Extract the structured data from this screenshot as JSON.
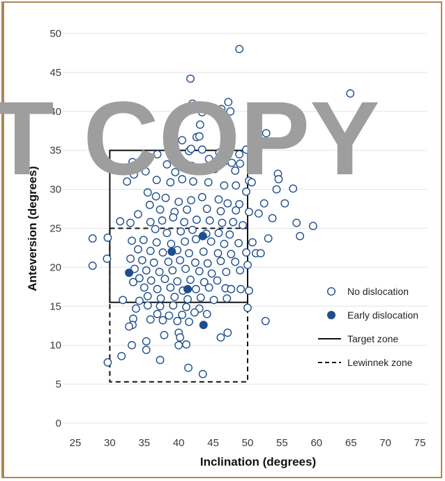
{
  "chart_data": {
    "type": "scatter",
    "xlabel": "Inclination (degrees)",
    "ylabel": "Anteversion (degrees)",
    "xlim": [
      25,
      75
    ],
    "ylim": [
      0,
      50
    ],
    "xticks": [
      25,
      30,
      35,
      40,
      45,
      50,
      55,
      60,
      65,
      70,
      75
    ],
    "yticks": [
      0,
      5,
      10,
      15,
      20,
      25,
      30,
      35,
      40,
      45,
      50
    ],
    "grid": "horizontal",
    "legend_position": "right",
    "watermark": "T COPY",
    "colors": {
      "marker": "#1f4e8c",
      "zone": "#111111",
      "grid": "#e3e3e3",
      "watermark": "#9e9e9e"
    },
    "zones": [
      {
        "name": "Target zone",
        "style": "solid",
        "x": [
          30,
          50
        ],
        "y": [
          15.5,
          35
        ]
      },
      {
        "name": "Lewinnek zone",
        "style": "dashed",
        "x": [
          30,
          50
        ],
        "y": [
          5.3,
          25
        ]
      }
    ],
    "series": [
      {
        "name": "No dislocation",
        "marker": "open-circle",
        "points": [
          [
            48.8,
            48
          ],
          [
            41.7,
            44.2
          ],
          [
            64.9,
            42.3
          ],
          [
            42,
            41
          ],
          [
            47.2,
            41.2
          ],
          [
            43.4,
            39.9
          ],
          [
            47.5,
            40
          ],
          [
            46.2,
            40.3
          ],
          [
            43.1,
            38.3
          ],
          [
            47,
            38.3
          ],
          [
            47.6,
            37.6
          ],
          [
            52.7,
            37.2
          ],
          [
            46.8,
            36.8
          ],
          [
            47.3,
            36.6
          ],
          [
            42.6,
            36.7
          ],
          [
            43,
            36.8
          ],
          [
            40.5,
            36.3
          ],
          [
            52.1,
            35.8
          ],
          [
            49.8,
            35.1
          ],
          [
            48.8,
            34.5
          ],
          [
            45.9,
            34.7
          ],
          [
            41.5,
            34.9
          ],
          [
            41.8,
            35.2
          ],
          [
            36.9,
            34.5
          ],
          [
            39.4,
            34.9
          ],
          [
            43.4,
            35.1
          ],
          [
            33.3,
            33.5
          ],
          [
            46.7,
            33.6
          ],
          [
            47.7,
            33.4
          ],
          [
            48.9,
            33.3
          ],
          [
            44.4,
            33.9
          ],
          [
            45.8,
            33.7
          ],
          [
            38.3,
            33.2
          ],
          [
            41.9,
            33
          ],
          [
            35.2,
            32.3
          ],
          [
            33.5,
            31.9
          ],
          [
            39.5,
            32.2
          ],
          [
            45.2,
            32.6
          ],
          [
            48.2,
            32.4
          ],
          [
            54.4,
            32
          ],
          [
            54.5,
            31.3
          ],
          [
            54.2,
            30
          ],
          [
            56.6,
            30.1
          ],
          [
            50.2,
            31.1
          ],
          [
            50.6,
            30.9
          ],
          [
            32.5,
            31
          ],
          [
            36.8,
            31.2
          ],
          [
            38.8,
            30.9
          ],
          [
            40.5,
            31.3
          ],
          [
            42.1,
            31
          ],
          [
            44.3,
            30.9
          ],
          [
            46.6,
            30.5
          ],
          [
            48.3,
            30.5
          ],
          [
            49.8,
            29.7
          ],
          [
            35.5,
            29.6
          ],
          [
            36.7,
            29.1
          ],
          [
            38.1,
            28.9
          ],
          [
            40,
            28.4
          ],
          [
            41.8,
            28.6
          ],
          [
            43.4,
            29
          ],
          [
            45.8,
            28.7
          ],
          [
            47.1,
            28.2
          ],
          [
            48.8,
            28.1
          ],
          [
            52.4,
            28.2
          ],
          [
            55.4,
            28.2
          ],
          [
            35.8,
            28
          ],
          [
            37.3,
            27.4
          ],
          [
            39.4,
            27.1
          ],
          [
            41.2,
            27.4
          ],
          [
            44.1,
            27.5
          ],
          [
            46.1,
            27.2
          ],
          [
            48.3,
            27.3
          ],
          [
            50.2,
            27.1
          ],
          [
            51.6,
            26.9
          ],
          [
            53.6,
            26.3
          ],
          [
            34.1,
            26.8
          ],
          [
            35.9,
            25.8
          ],
          [
            37.6,
            26
          ],
          [
            39.2,
            26.4
          ],
          [
            40.8,
            25.8
          ],
          [
            42.6,
            26.1
          ],
          [
            44.5,
            26
          ],
          [
            46.3,
            25.7
          ],
          [
            47.9,
            25.8
          ],
          [
            49.3,
            25.4
          ],
          [
            31.5,
            25.9
          ],
          [
            33,
            25.7
          ],
          [
            57.1,
            25.7
          ],
          [
            59.5,
            25.3
          ],
          [
            36.6,
            24.9
          ],
          [
            38.3,
            24.4
          ],
          [
            40.3,
            24.6
          ],
          [
            42,
            24.8
          ],
          [
            44,
            24.3
          ],
          [
            45.8,
            24.4
          ],
          [
            47.4,
            24.2
          ],
          [
            57.6,
            24
          ],
          [
            29.7,
            23.8
          ],
          [
            27.5,
            23.7
          ],
          [
            33.2,
            23.4
          ],
          [
            34.9,
            23.5
          ],
          [
            36.8,
            23.2
          ],
          [
            38.9,
            23
          ],
          [
            40.9,
            23.3
          ],
          [
            42.5,
            23.6
          ],
          [
            44.7,
            23.3
          ],
          [
            46.6,
            23
          ],
          [
            48.7,
            23.1
          ],
          [
            50.7,
            23.2
          ],
          [
            53,
            23.7
          ],
          [
            34.1,
            22.3
          ],
          [
            35.9,
            22.1
          ],
          [
            37.7,
            21.9
          ],
          [
            39.8,
            22.2
          ],
          [
            41.5,
            21.8
          ],
          [
            43.6,
            22
          ],
          [
            45.7,
            21.8
          ],
          [
            47.6,
            21.7
          ],
          [
            49.8,
            21.9
          ],
          [
            51.2,
            21.8
          ],
          [
            51.9,
            21.8
          ],
          [
            29.6,
            21.1
          ],
          [
            33,
            21.1
          ],
          [
            34.7,
            20.9
          ],
          [
            36.4,
            20.6
          ],
          [
            38.5,
            20.7
          ],
          [
            40.2,
            20.9
          ],
          [
            42.4,
            20.6
          ],
          [
            44.2,
            20.5
          ],
          [
            46.1,
            20.8
          ],
          [
            48.2,
            20.7
          ],
          [
            50,
            20.3
          ],
          [
            27.5,
            20.2
          ],
          [
            33.6,
            19.8
          ],
          [
            35.3,
            19.6
          ],
          [
            37.2,
            19.4
          ],
          [
            39.1,
            19.6
          ],
          [
            41,
            19.8
          ],
          [
            43,
            19.5
          ],
          [
            44.8,
            19.2
          ],
          [
            46.9,
            19.4
          ],
          [
            48.9,
            19.6
          ],
          [
            34.3,
            18.6
          ],
          [
            36,
            18.3
          ],
          [
            38,
            18.5
          ],
          [
            39.8,
            18.2
          ],
          [
            41.7,
            18.4
          ],
          [
            43.7,
            18.1
          ],
          [
            45.6,
            18.3
          ],
          [
            33.4,
            18.1
          ],
          [
            35,
            17.4
          ],
          [
            36.9,
            17.2
          ],
          [
            38.8,
            17.4
          ],
          [
            40.6,
            17
          ],
          [
            42.5,
            17.2
          ],
          [
            44.4,
            17.4
          ],
          [
            46.8,
            17.3
          ],
          [
            47.6,
            17.2
          ],
          [
            49,
            17.2
          ],
          [
            50.2,
            17
          ],
          [
            35.5,
            16.3
          ],
          [
            37.4,
            16
          ],
          [
            39.4,
            16.2
          ],
          [
            41.3,
            15.9
          ],
          [
            43.2,
            16.1
          ],
          [
            45.1,
            15.8
          ],
          [
            47,
            16
          ],
          [
            31.9,
            15.8
          ],
          [
            34.3,
            15.7
          ],
          [
            35.5,
            15.1
          ],
          [
            37.3,
            15
          ],
          [
            39.2,
            15.1
          ],
          [
            41.1,
            14.9
          ],
          [
            43,
            14.7
          ],
          [
            50,
            14.8
          ],
          [
            33.8,
            14.7
          ],
          [
            36.9,
            14
          ],
          [
            38.6,
            13.8
          ],
          [
            40.5,
            13.9
          ],
          [
            42.3,
            14.2
          ],
          [
            44.1,
            14
          ],
          [
            33.4,
            13.4
          ],
          [
            35.9,
            13.3
          ],
          [
            37.7,
            13.2
          ],
          [
            39.8,
            13.1
          ],
          [
            41.5,
            13
          ],
          [
            52.6,
            13.1
          ],
          [
            33.3,
            12.6
          ],
          [
            32.8,
            12.4
          ],
          [
            40,
            11.6
          ],
          [
            37.9,
            11.3
          ],
          [
            40.2,
            11
          ],
          [
            47.1,
            11.6
          ],
          [
            46.1,
            11
          ],
          [
            35.3,
            10.5
          ],
          [
            33.2,
            10
          ],
          [
            40,
            10
          ],
          [
            41.1,
            10.1
          ],
          [
            35.3,
            9.4
          ],
          [
            31.7,
            8.6
          ],
          [
            37.3,
            8.1
          ],
          [
            29.7,
            7.8
          ],
          [
            41.4,
            7.1
          ],
          [
            43.5,
            6.3
          ]
        ]
      },
      {
        "name": "Early dislocation",
        "marker": "filled-circle",
        "points": [
          [
            39,
            36
          ],
          [
            43.5,
            24
          ],
          [
            39,
            22
          ],
          [
            32.8,
            19.3
          ],
          [
            41.3,
            17.2
          ],
          [
            43.6,
            12.6
          ]
        ]
      }
    ]
  }
}
